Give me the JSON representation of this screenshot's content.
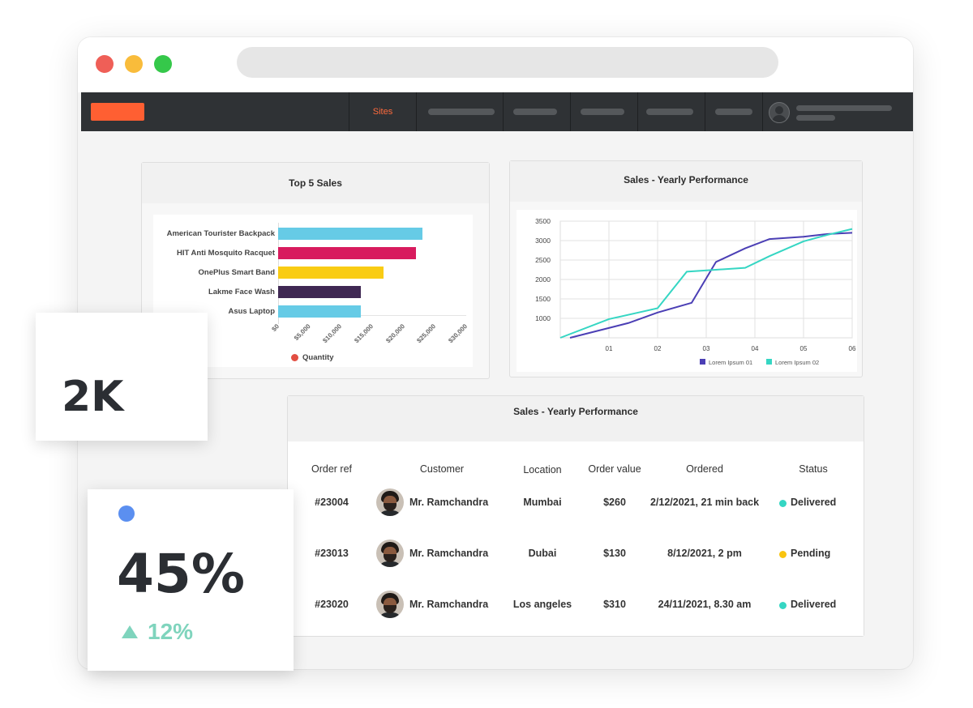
{
  "nav": {
    "active_item": "Sites"
  },
  "top_sales": {
    "title": "Top 5 Sales",
    "legend_label": "Quantity",
    "legend_color": "#e24e42",
    "chart_data": {
      "type": "bar",
      "orientation": "horizontal",
      "categories": [
        "American Tourister  Backpack",
        "HIT Anti Mosquito Racquet",
        "OnePlus Smart Band",
        "Lakme Face Wash",
        "Asus Laptop"
      ],
      "values": [
        23000,
        22000,
        16800,
        13200,
        13200
      ],
      "colors": [
        "#66cbe6",
        "#d81b5e",
        "#f9cc14",
        "#3f2853",
        "#66cbe6"
      ],
      "x_ticks": [
        "$0",
        "$5,000",
        "$10,000",
        "$15,000",
        "$20,000",
        "$25,000",
        "$30,000"
      ],
      "xlim": [
        0,
        30000
      ],
      "series_name": "Quantity"
    }
  },
  "yearly_chart": {
    "title": "Sales - Yearly Performance",
    "chart_data": {
      "type": "line",
      "x_ticks": [
        "01",
        "02",
        "03",
        "04",
        "05",
        "06"
      ],
      "y_ticks": [
        "1000",
        "1500",
        "2000",
        "2500",
        "3000",
        "3500"
      ],
      "ylim": [
        500,
        3500
      ],
      "xlim": [
        0,
        6
      ],
      "grid": true,
      "legend_position": "bottom-right",
      "series": [
        {
          "name": "Lorem Ipsum 01",
          "color": "#4b3fb5",
          "x": [
            0.2,
            1.4,
            2.0,
            2.7,
            3.2,
            3.8,
            4.3,
            5.0,
            5.5,
            6.0
          ],
          "y": [
            500,
            880,
            1150,
            1400,
            2450,
            2800,
            3040,
            3100,
            3170,
            3200
          ]
        },
        {
          "name": "Lorem Ipsum 02",
          "color": "#35d6c3",
          "x": [
            0.0,
            1.0,
            2.0,
            2.6,
            3.2,
            3.8,
            4.3,
            5.0,
            5.5,
            6.0
          ],
          "y": [
            500,
            980,
            1260,
            2200,
            2250,
            2300,
            2600,
            2980,
            3150,
            3300
          ]
        }
      ]
    }
  },
  "orders_table": {
    "title": "Sales - Yearly Performance",
    "headers": [
      "Order ref",
      "Customer",
      "Location",
      "Order value",
      "Ordered",
      "Status"
    ],
    "rows": [
      {
        "ref": "#23004",
        "customer": "Mr. Ramchandra",
        "location": "Mumbai",
        "value": "$260",
        "ordered": "2/12/2021, 21 min back",
        "status": "Delivered",
        "status_color": "#35d6c3"
      },
      {
        "ref": "#23013",
        "customer": "Mr. Ramchandra",
        "location": "Dubai",
        "value": "$130",
        "ordered": "8/12/2021, 2 pm",
        "status": "Pending",
        "status_color": "#f9c410"
      },
      {
        "ref": "#23020",
        "customer": "Mr. Ramchandra",
        "location": "Los angeles",
        "value": "$310",
        "ordered": "24/11/2021, 8.30 am",
        "status": "Delivered",
        "status_color": "#35d6c3"
      }
    ]
  },
  "stat_count": {
    "value": "2K"
  },
  "stat_percent": {
    "value": "45%",
    "change": "12%",
    "dot_color": "#5b8ff0",
    "change_color": "#7fd4bd"
  }
}
